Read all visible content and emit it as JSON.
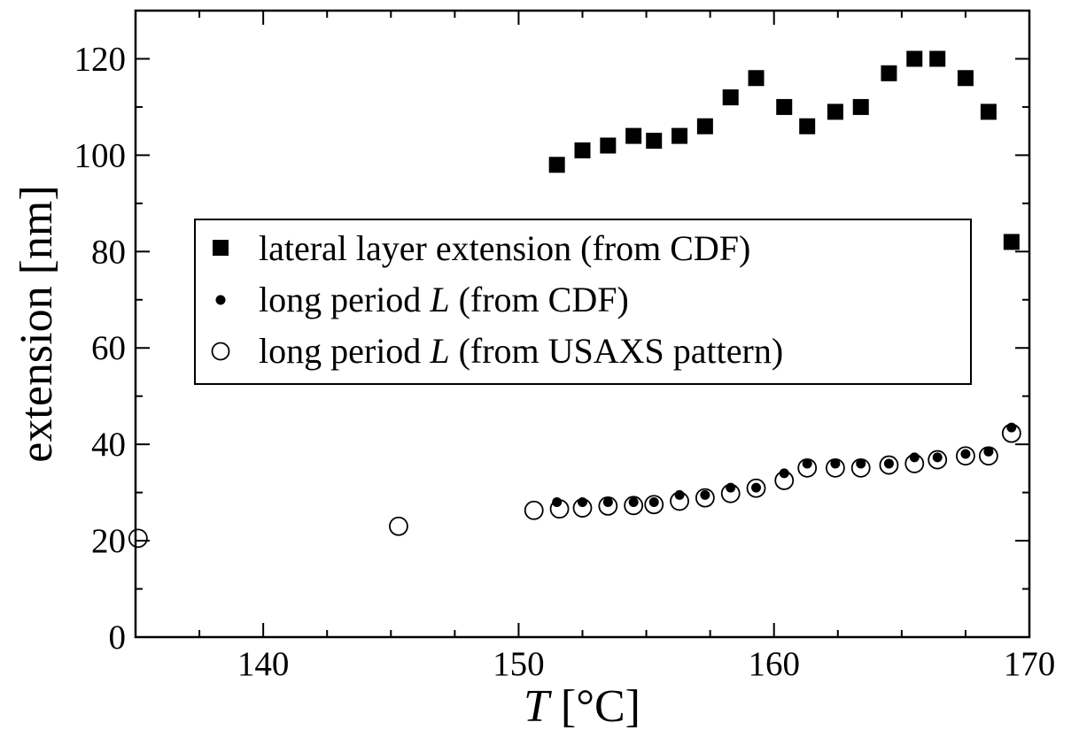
{
  "chart_data": {
    "type": "scatter",
    "xlabel_var": "T",
    "xlabel_unit": " [°C]",
    "ylabel": "extension [nm]",
    "xlim": [
      135,
      170
    ],
    "ylim": [
      0,
      130
    ],
    "xticks": [
      140,
      150,
      160,
      170
    ],
    "yticks": [
      0,
      20,
      40,
      60,
      80,
      100,
      120
    ],
    "x_minor_step": 2.5,
    "y_minor_step": 10,
    "legend_placement": "center-left, inside plot",
    "series": [
      {
        "name_parts": [
          "lateral layer extension (from CDF)",
          "",
          ""
        ],
        "marker": "filled-square",
        "points": [
          [
            151.5,
            98
          ],
          [
            152.5,
            101
          ],
          [
            153.5,
            102
          ],
          [
            154.5,
            104
          ],
          [
            155.3,
            103
          ],
          [
            156.3,
            104
          ],
          [
            157.3,
            106
          ],
          [
            158.3,
            112
          ],
          [
            159.3,
            116
          ],
          [
            160.4,
            110
          ],
          [
            161.3,
            106
          ],
          [
            162.4,
            109
          ],
          [
            163.4,
            110
          ],
          [
            164.5,
            117
          ],
          [
            165.5,
            120
          ],
          [
            166.4,
            120
          ],
          [
            167.5,
            116
          ],
          [
            168.4,
            109
          ],
          [
            169.3,
            82
          ]
        ]
      },
      {
        "name_parts": [
          "long period ",
          "L",
          " (from CDF)"
        ],
        "marker": "filled-dot",
        "points": [
          [
            151.5,
            28
          ],
          [
            152.5,
            28
          ],
          [
            153.5,
            28
          ],
          [
            154.5,
            28
          ],
          [
            155.3,
            28
          ],
          [
            156.3,
            29.5
          ],
          [
            157.3,
            29.5
          ],
          [
            158.3,
            31
          ],
          [
            159.3,
            31
          ],
          [
            160.4,
            34
          ],
          [
            161.3,
            36
          ],
          [
            162.4,
            36
          ],
          [
            163.4,
            36
          ],
          [
            164.5,
            36
          ],
          [
            165.5,
            37.3
          ],
          [
            166.4,
            37.3
          ],
          [
            167.5,
            38
          ],
          [
            168.4,
            38.5
          ],
          [
            169.3,
            43.5
          ]
        ]
      },
      {
        "name_parts": [
          "long period ",
          "L",
          " (from USAXS pattern)"
        ],
        "marker": "open-circle",
        "points": [
          [
            135.1,
            20.5
          ],
          [
            145.3,
            23
          ],
          [
            150.6,
            26.3
          ],
          [
            151.6,
            26.6
          ],
          [
            152.5,
            26.8
          ],
          [
            153.5,
            27.2
          ],
          [
            154.5,
            27.3
          ],
          [
            155.3,
            27.5
          ],
          [
            156.3,
            28.2
          ],
          [
            157.3,
            28.9
          ],
          [
            158.3,
            29.8
          ],
          [
            159.3,
            30.9
          ],
          [
            160.4,
            32.5
          ],
          [
            161.3,
            35.1
          ],
          [
            162.4,
            35.1
          ],
          [
            163.4,
            35.1
          ],
          [
            164.5,
            35.7
          ],
          [
            165.5,
            36
          ],
          [
            166.4,
            36.8
          ],
          [
            167.5,
            37.6
          ],
          [
            168.4,
            37.6
          ],
          [
            169.3,
            42.3
          ]
        ]
      }
    ]
  }
}
